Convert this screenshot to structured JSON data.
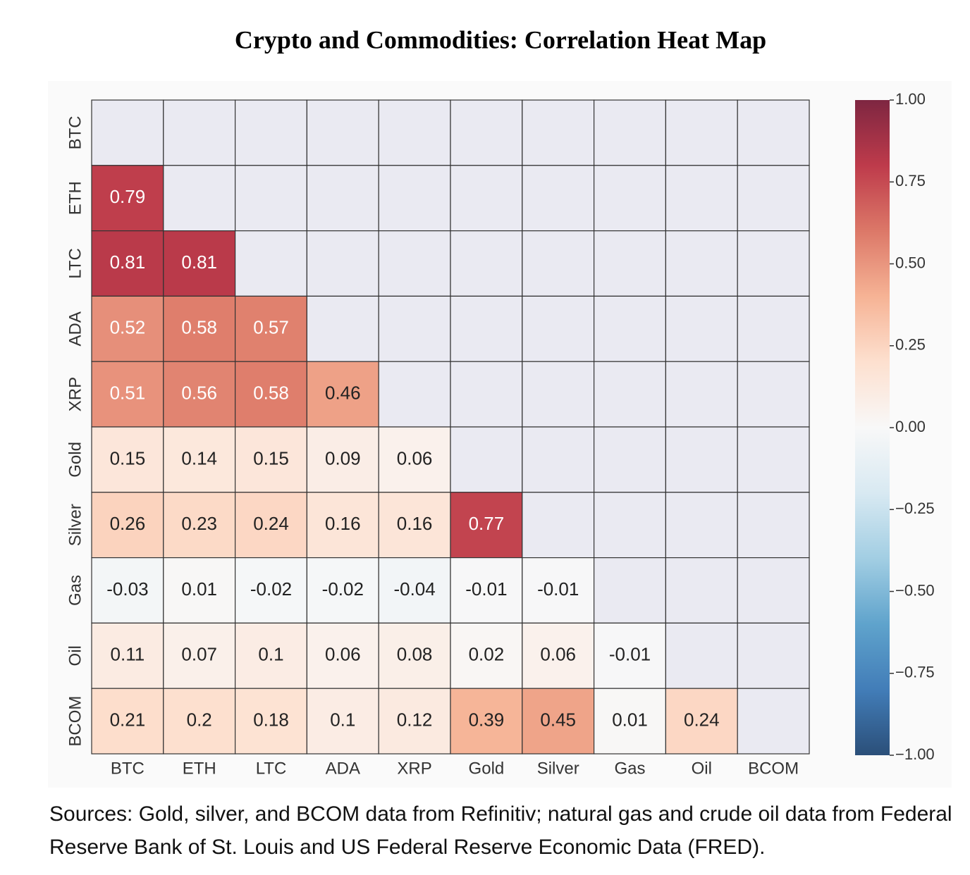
{
  "chart_data": {
    "type": "heatmap",
    "title": "Crypto and Commodities: Correlation Heat Map",
    "x": [
      "BTC",
      "ETH",
      "LTC",
      "ADA",
      "XRP",
      "Gold",
      "Silver",
      "Gas",
      "Oil",
      "BCOM"
    ],
    "y": [
      "BTC",
      "ETH",
      "LTC",
      "ADA",
      "XRP",
      "Gold",
      "Silver",
      "Gas",
      "Oil",
      "BCOM"
    ],
    "values": [
      [
        null,
        null,
        null,
        null,
        null,
        null,
        null,
        null,
        null,
        null
      ],
      [
        0.79,
        null,
        null,
        null,
        null,
        null,
        null,
        null,
        null,
        null
      ],
      [
        0.81,
        0.81,
        null,
        null,
        null,
        null,
        null,
        null,
        null,
        null
      ],
      [
        0.52,
        0.58,
        0.57,
        null,
        null,
        null,
        null,
        null,
        null,
        null
      ],
      [
        0.51,
        0.56,
        0.58,
        0.46,
        null,
        null,
        null,
        null,
        null,
        null
      ],
      [
        0.15,
        0.14,
        0.15,
        0.09,
        0.06,
        null,
        null,
        null,
        null,
        null
      ],
      [
        0.26,
        0.23,
        0.24,
        0.16,
        0.16,
        0.77,
        null,
        null,
        null,
        null
      ],
      [
        -0.03,
        0.01,
        -0.02,
        -0.02,
        -0.04,
        -0.01,
        -0.01,
        null,
        null,
        null
      ],
      [
        0.11,
        0.07,
        0.1,
        0.06,
        0.08,
        0.02,
        0.06,
        -0.01,
        null,
        null
      ],
      [
        0.21,
        0.2,
        0.18,
        0.1,
        0.12,
        0.39,
        0.45,
        0.01,
        0.24,
        null
      ]
    ],
    "colorscale": [
      "#053061",
      "#2166ac",
      "#4393c3",
      "#92c5de",
      "#d1e5f0",
      "#f7f7f7",
      "#fddbc7",
      "#f4a582",
      "#d6604d",
      "#b2182b",
      "#67001f"
    ],
    "clim": [
      -1,
      1
    ],
    "cticks": [
      {
        "value": 1,
        "label": "1.00"
      },
      {
        "value": 0.75,
        "label": "0.75"
      },
      {
        "value": 0.5,
        "label": "0.50"
      },
      {
        "value": 0.25,
        "label": "0.25"
      },
      {
        "value": 0,
        "label": "0.00"
      },
      {
        "value": -0.25,
        "label": "−0.25"
      },
      {
        "value": -0.5,
        "label": "−0.50"
      },
      {
        "value": -0.75,
        "label": "−0.75"
      },
      {
        "value": -1,
        "label": "−1.00"
      }
    ],
    "source": "Sources: Gold, silver, and BCOM data from Refinitiv; natural gas and crude oil data from Federal Reserve Bank of St. Louis and US Federal Reserve Economic Data (FRED)."
  }
}
